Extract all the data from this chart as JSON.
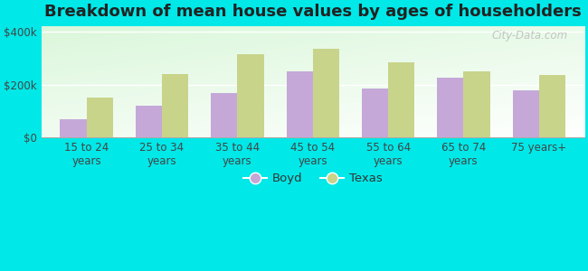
{
  "categories": [
    "15 to 24\nyears",
    "25 to 34\nyears",
    "35 to 44\nyears",
    "45 to 54\nyears",
    "55 to 64\nyears",
    "65 to 74\nyears",
    "75 years+"
  ],
  "boyd_values": [
    70000,
    120000,
    170000,
    250000,
    185000,
    225000,
    180000
  ],
  "texas_values": [
    150000,
    240000,
    315000,
    335000,
    285000,
    250000,
    235000
  ],
  "boyd_color": "#c5a8d8",
  "texas_color": "#c8d48a",
  "title": "Breakdown of mean house values by ages of householders",
  "ylabel_ticks": [
    0,
    200000,
    400000
  ],
  "ylabel_labels": [
    "$0",
    "$200k",
    "$400k"
  ],
  "outer_background": "#00e8e8",
  "legend_boyd": "Boyd",
  "legend_texas": "Texas",
  "ylim": [
    0,
    420000
  ],
  "bar_width": 0.35,
  "title_fontsize": 13,
  "tick_fontsize": 8.5,
  "legend_fontsize": 9.5,
  "watermark": "City-Data.com"
}
